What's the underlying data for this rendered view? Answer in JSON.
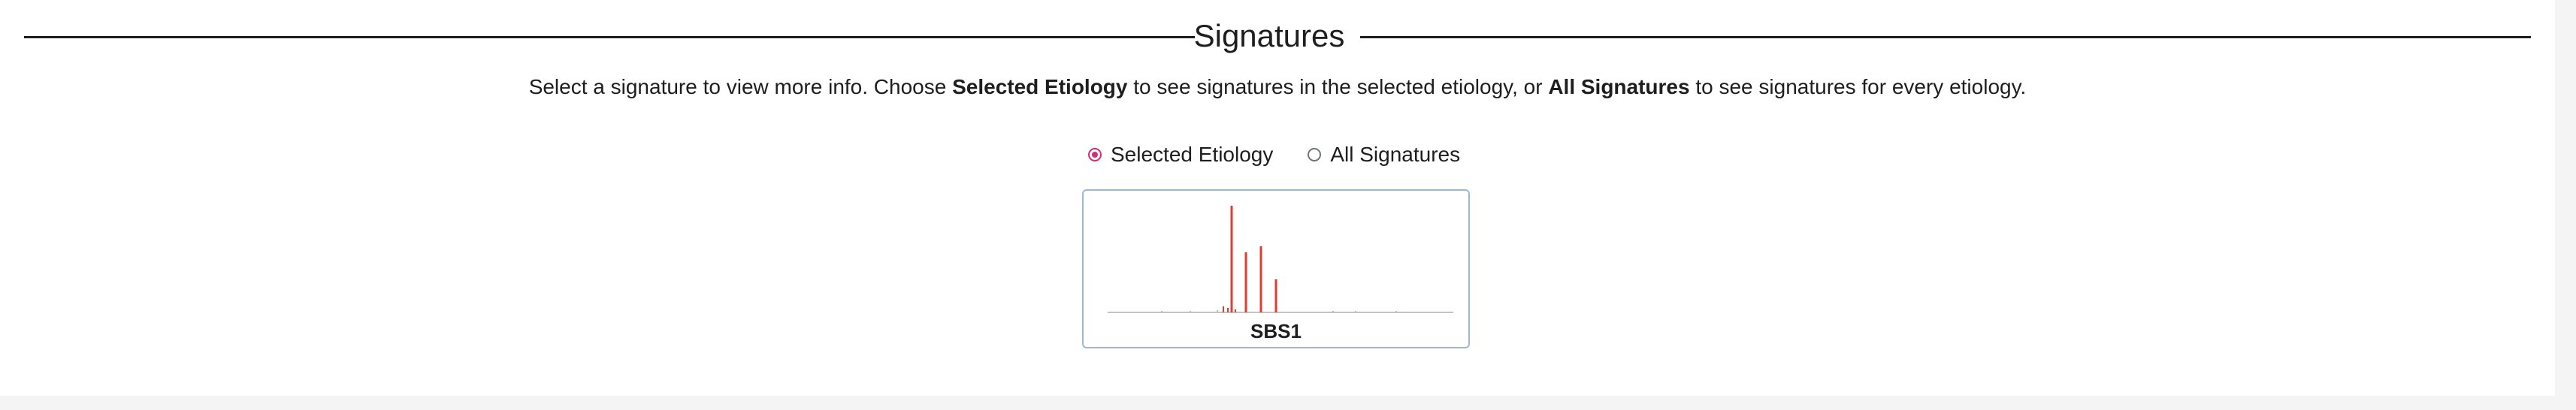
{
  "section": {
    "title": "Signatures"
  },
  "description": {
    "part1": "Select a signature to view more info. Choose ",
    "bold1": "Selected Etiology",
    "part2": " to see signatures in the selected etiology, or ",
    "bold2": "All Signatures",
    "part3": " to see signatures for every etiology."
  },
  "radio_options": [
    {
      "label": "Selected Etiology",
      "selected": true
    },
    {
      "label": "All Signatures",
      "selected": false
    }
  ],
  "accent_color": "#d62b7a",
  "signatures": [
    {
      "name": "SBS1",
      "bar_color": "#e03c31",
      "baseline_color": "#b0b0b0"
    }
  ]
}
